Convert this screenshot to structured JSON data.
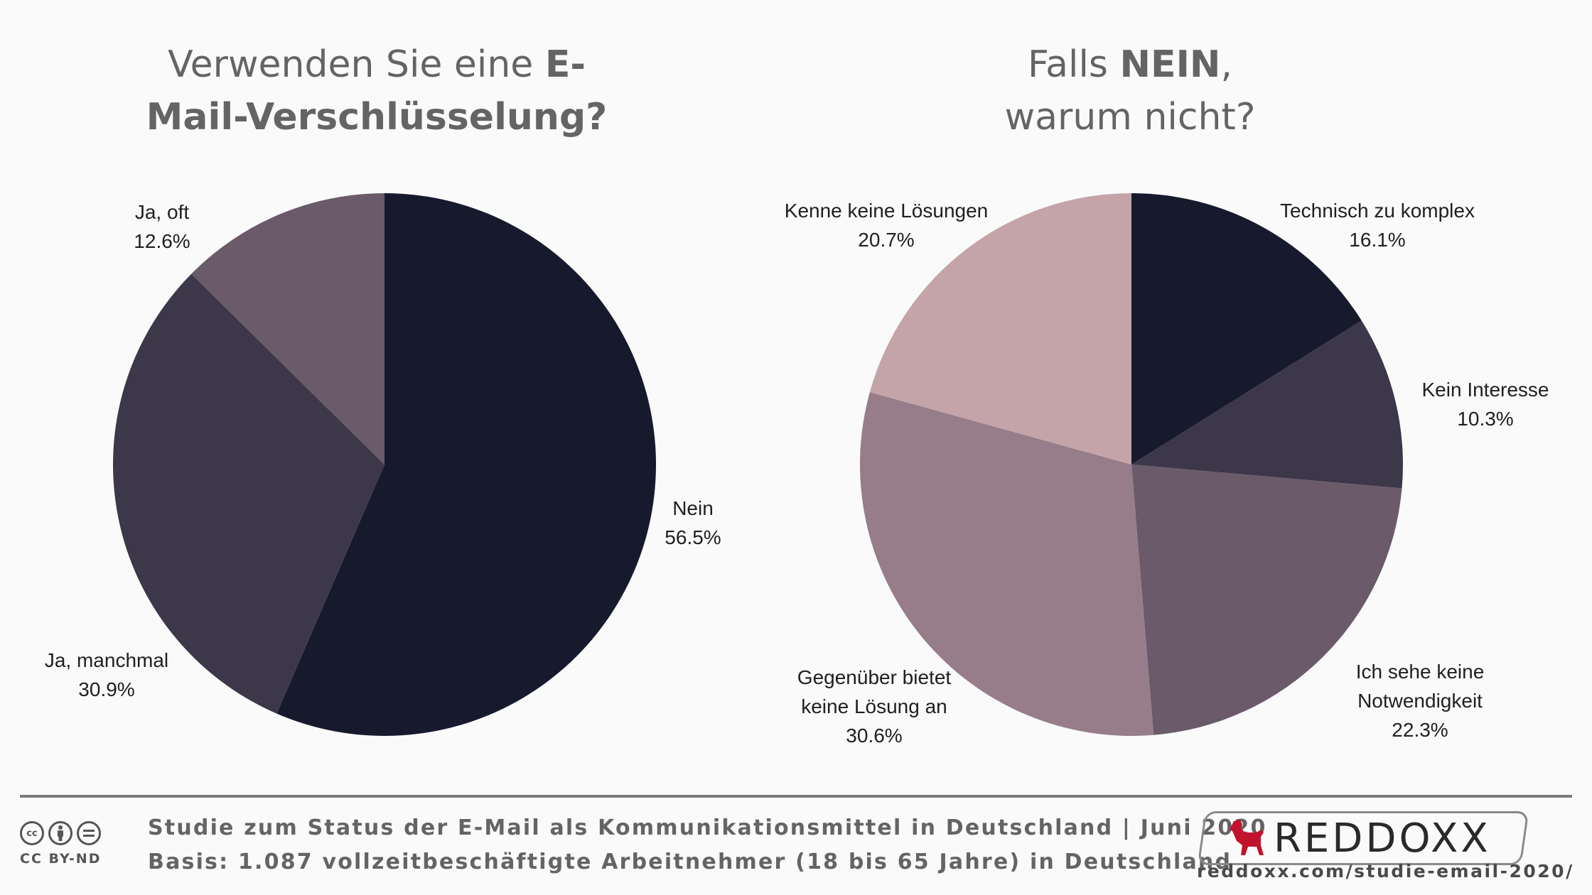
{
  "charts": {
    "left": {
      "title_normal": "Verwenden Sie eine ",
      "title_bold_1": "E-",
      "title_bold_2": "Mail-Verschlüsselung?"
    },
    "right": {
      "title_normal_1": "Falls ",
      "title_bold": "NEIN",
      "title_normal_2": ",",
      "title_line2": "warum nicht?"
    }
  },
  "chart_data": [
    {
      "type": "pie",
      "title": "Verwenden Sie eine E-Mail-Verschlüsselung?",
      "slices": [
        {
          "label": "Nein",
          "value": 56.5,
          "display": "56.5%",
          "color": "#171a2c"
        },
        {
          "label": "Ja, manchmal",
          "value": 30.9,
          "display": "30.9%",
          "color": "#3d374a"
        },
        {
          "label": "Ja, oft",
          "value": 12.6,
          "display": "12.6%",
          "color": "#6a5a6a"
        }
      ]
    },
    {
      "type": "pie",
      "title": "Falls NEIN, warum nicht?",
      "slices": [
        {
          "label": "Technisch zu komplex",
          "value": 16.1,
          "display": "16.1%",
          "color": "#171a2c"
        },
        {
          "label": "Kein Interesse",
          "value": 10.3,
          "display": "10.3%",
          "color": "#3d374a"
        },
        {
          "label": "Ich sehe keine Notwendigkeit",
          "value": 22.3,
          "display": "22.3%",
          "color": "#6a5a6a"
        },
        {
          "label": "Gegenüber bietet keine Lösung an",
          "value": 30.6,
          "display": "30.6%",
          "color": "#967d89"
        },
        {
          "label": "Kenne keine Lösungen",
          "value": 20.7,
          "display": "20.7%",
          "color": "#c4a4a9"
        }
      ]
    }
  ],
  "footer": {
    "study": "Studie zum Status der E-Mail als Kommunikationsmittel in Deutschland | Juni 2020",
    "basis": "Basis: 1.087 vollzeitbeschäftigte Arbeitnehmer (18 bis 65 Jahre) in Deutschland",
    "license": "CC BY-ND",
    "brand": "REDDOXX",
    "url": "reddoxx.com/studie-email-2020/"
  }
}
